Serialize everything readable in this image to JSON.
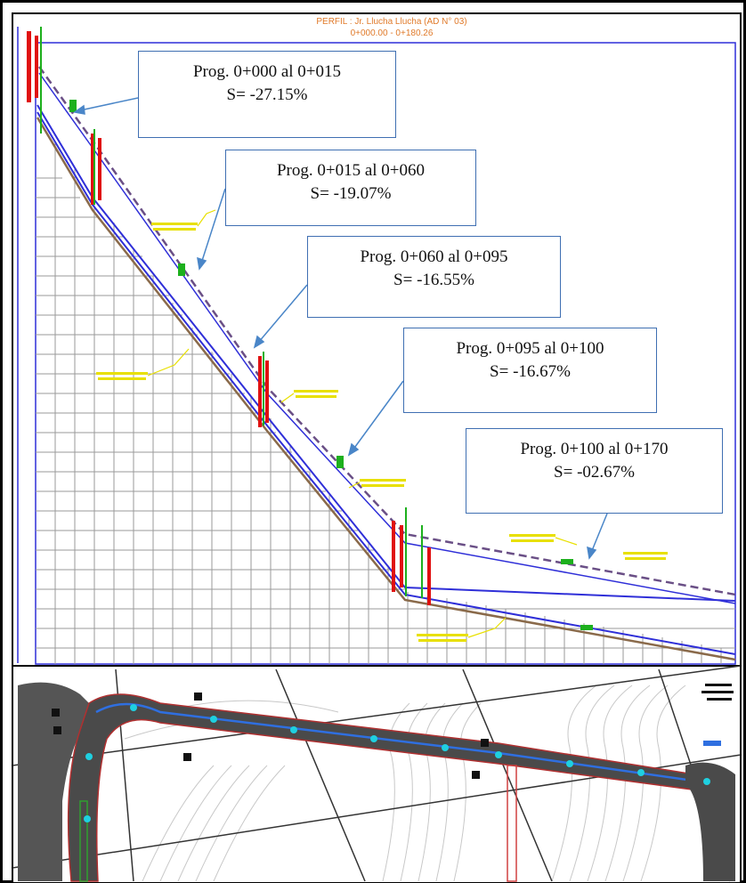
{
  "profile": {
    "title_line1": "PERFIL : Jr. Llucha Llucha (AD N° 03)",
    "title_line2": "0+000.00 - 0+180.26"
  },
  "callouts": [
    {
      "range": "Prog. 0+000 al 0+015",
      "slope": "S= -27.15%"
    },
    {
      "range": "Prog. 0+015 al 0+060",
      "slope": "S= -19.07%"
    },
    {
      "range": "Prog. 0+060 al 0+095",
      "slope": "S= -16.55%"
    },
    {
      "range": "Prog. 0+095 al 0+100",
      "slope": "S= -16.67%"
    },
    {
      "range": "Prog. 0+100 al 0+170",
      "slope": "S= -02.67%"
    }
  ],
  "colors": {
    "frame": "#000000",
    "grid": "#9a9a9a",
    "pipe": "#2f2fd8",
    "ground": "#8a6a4a",
    "annotation": "#e8e000",
    "station": "#e01010",
    "arrow": "#4a86c8",
    "plan_bg": "#ffffff",
    "road": "#3a3a3a"
  }
}
